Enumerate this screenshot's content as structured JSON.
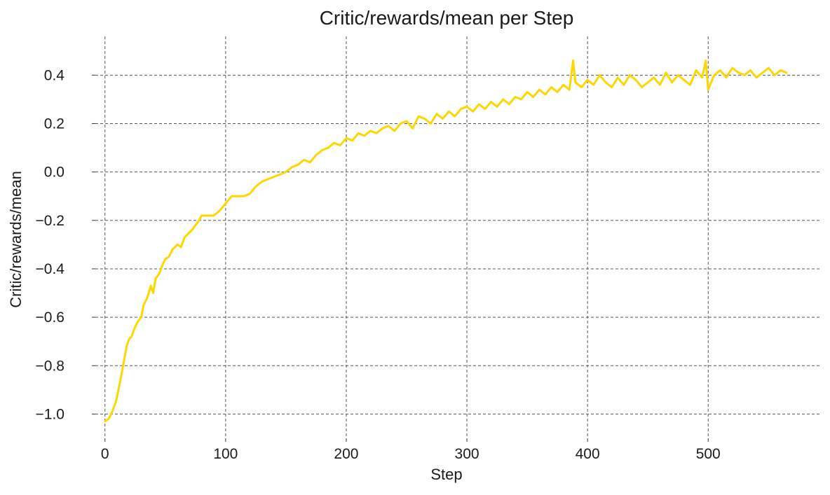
{
  "chart_data": {
    "type": "line",
    "title": "Critic/rewards/mean per Step",
    "xlabel": "Step",
    "ylabel": "Critic/rewards/mean",
    "xlim": [
      -8,
      594
    ],
    "ylim": [
      -1.1,
      0.56
    ],
    "x_ticks": [
      0,
      100,
      200,
      300,
      400,
      500
    ],
    "x_tick_labels": [
      "0",
      "100",
      "200",
      "300",
      "400",
      "500"
    ],
    "y_ticks": [
      -1.0,
      -0.8,
      -0.6,
      -0.4,
      -0.2,
      0.0,
      0.2,
      0.4
    ],
    "y_tick_labels": [
      "−1.0",
      "−0.8",
      "−0.6",
      "−0.4",
      "−0.2",
      "0.0",
      "0.2",
      "0.4"
    ],
    "grid": true,
    "legend": "none",
    "color": "#FFD700",
    "series": [
      {
        "name": "",
        "x": [
          0,
          3,
          6,
          9,
          12,
          15,
          18,
          20,
          22,
          25,
          27,
          30,
          32,
          35,
          38,
          40,
          42,
          45,
          48,
          50,
          53,
          56,
          60,
          63,
          66,
          70,
          72,
          75,
          78,
          80,
          85,
          90,
          95,
          100,
          105,
          110,
          115,
          120,
          125,
          130,
          135,
          140,
          145,
          150,
          155,
          160,
          165,
          170,
          175,
          180,
          185,
          190,
          195,
          200,
          205,
          210,
          215,
          220,
          225,
          230,
          235,
          240,
          245,
          250,
          255,
          260,
          265,
          270,
          275,
          280,
          285,
          290,
          295,
          300,
          305,
          310,
          315,
          320,
          325,
          330,
          335,
          340,
          345,
          350,
          355,
          360,
          365,
          370,
          375,
          380,
          385,
          388,
          390,
          395,
          400,
          405,
          410,
          415,
          420,
          425,
          430,
          435,
          440,
          445,
          450,
          455,
          460,
          465,
          470,
          475,
          480,
          485,
          490,
          495,
          498,
          500,
          505,
          510,
          515,
          520,
          525,
          530,
          535,
          540,
          545,
          550,
          555,
          560,
          565
        ],
        "y": [
          -1.03,
          -1.02,
          -0.99,
          -0.95,
          -0.88,
          -0.8,
          -0.72,
          -0.69,
          -0.68,
          -0.64,
          -0.62,
          -0.6,
          -0.55,
          -0.52,
          -0.47,
          -0.5,
          -0.44,
          -0.42,
          -0.38,
          -0.36,
          -0.35,
          -0.32,
          -0.3,
          -0.31,
          -0.27,
          -0.25,
          -0.24,
          -0.22,
          -0.2,
          -0.18,
          -0.18,
          -0.18,
          -0.16,
          -0.13,
          -0.1,
          -0.1,
          -0.1,
          -0.09,
          -0.06,
          -0.04,
          -0.03,
          -0.02,
          -0.01,
          0.0,
          0.02,
          0.03,
          0.05,
          0.04,
          0.07,
          0.09,
          0.1,
          0.12,
          0.11,
          0.14,
          0.13,
          0.16,
          0.15,
          0.17,
          0.16,
          0.18,
          0.19,
          0.17,
          0.2,
          0.21,
          0.18,
          0.23,
          0.22,
          0.2,
          0.24,
          0.22,
          0.25,
          0.23,
          0.26,
          0.27,
          0.25,
          0.28,
          0.26,
          0.29,
          0.27,
          0.3,
          0.28,
          0.31,
          0.3,
          0.33,
          0.31,
          0.34,
          0.32,
          0.35,
          0.33,
          0.36,
          0.34,
          0.46,
          0.37,
          0.35,
          0.38,
          0.36,
          0.4,
          0.37,
          0.35,
          0.39,
          0.36,
          0.4,
          0.38,
          0.35,
          0.37,
          0.39,
          0.36,
          0.41,
          0.37,
          0.4,
          0.38,
          0.36,
          0.42,
          0.39,
          0.46,
          0.34,
          0.4,
          0.42,
          0.39,
          0.43,
          0.41,
          0.4,
          0.42,
          0.39,
          0.41,
          0.43,
          0.4,
          0.42,
          0.41
        ]
      }
    ]
  }
}
